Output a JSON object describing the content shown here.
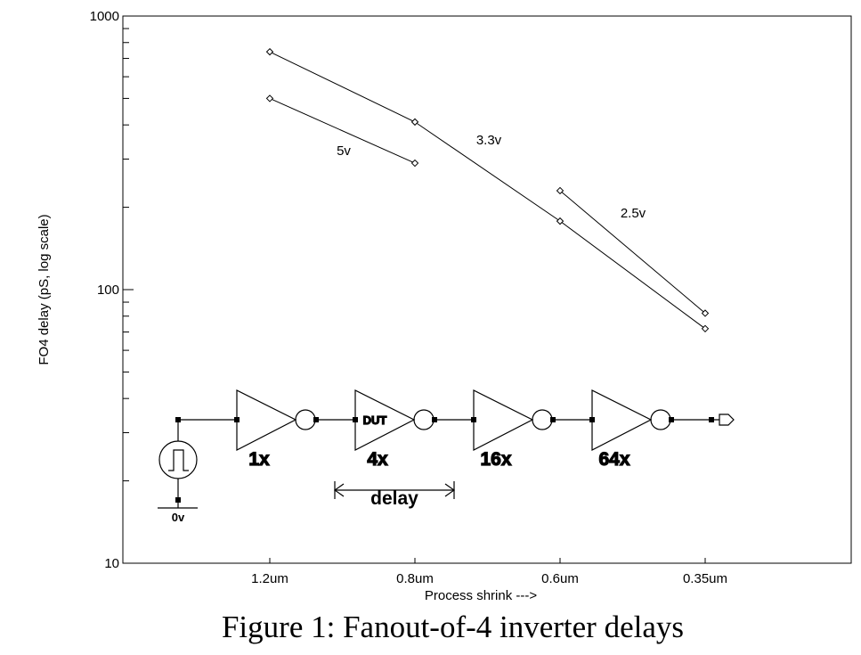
{
  "chart_data": {
    "type": "line",
    "title": "",
    "xlabel": "Process shrink --->",
    "ylabel": "FO4 delay (pS, log scale)",
    "y_scale": "log",
    "ylim": [
      10,
      1000
    ],
    "y_ticks": [
      "10",
      "100",
      "1000"
    ],
    "categories": [
      "1.2um",
      "0.8um",
      "0.6um",
      "0.35um"
    ],
    "grid": false,
    "series": [
      {
        "name": "5v",
        "x": [
          "1.2um",
          "0.8um"
        ],
        "values": [
          500,
          290
        ]
      },
      {
        "name": "3.3v",
        "x": [
          "1.2um",
          "0.8um",
          "0.6um",
          "0.35um"
        ],
        "values": [
          740,
          410,
          178,
          72
        ]
      },
      {
        "name": "2.5v",
        "x": [
          "0.6um",
          "0.35um"
        ],
        "values": [
          230,
          82
        ]
      }
    ]
  },
  "schematic": {
    "source_label": "0v",
    "inverters": [
      {
        "size": "1x",
        "inner": ""
      },
      {
        "size": "4x",
        "inner": "DUT"
      },
      {
        "size": "16x",
        "inner": ""
      },
      {
        "size": "64x",
        "inner": ""
      }
    ],
    "delay_label": "delay"
  },
  "caption": "Figure 1: Fanout-of-4 inverter delays"
}
